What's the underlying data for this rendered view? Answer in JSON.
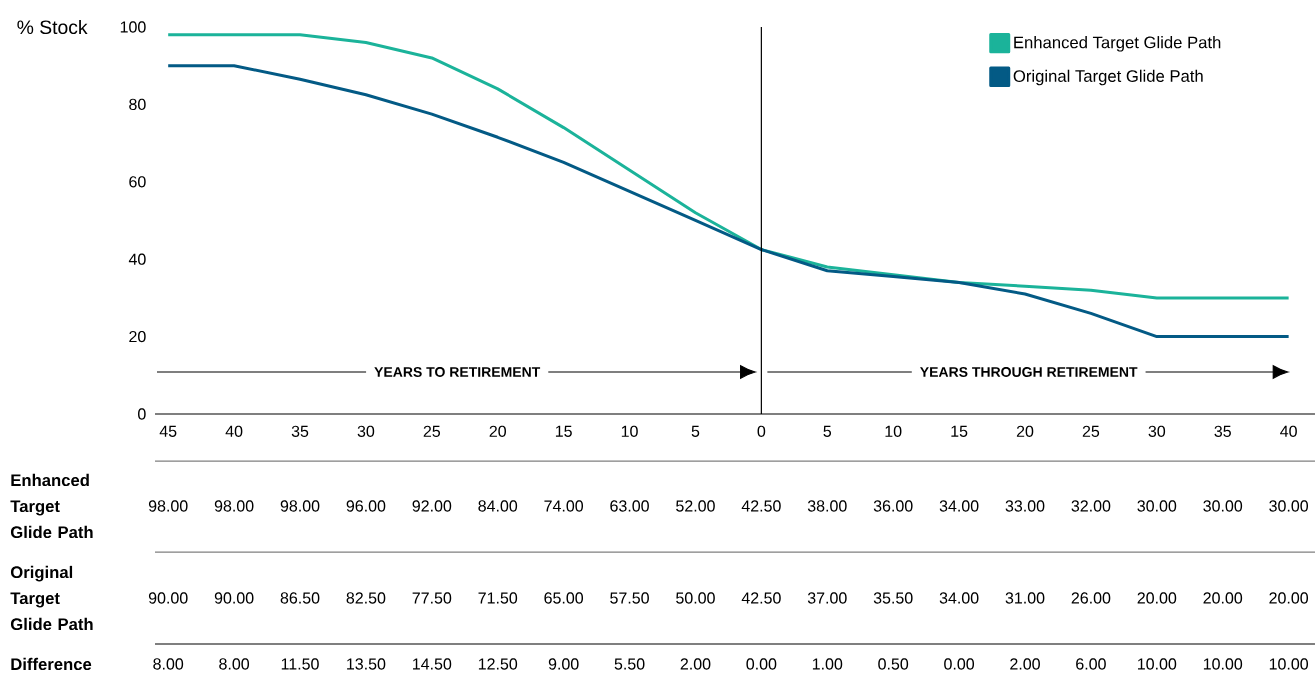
{
  "chart_data": {
    "type": "line",
    "ylabel": "% Stock",
    "x": [
      -45,
      -40,
      -35,
      -30,
      -25,
      -20,
      -15,
      -10,
      -5,
      0,
      5,
      10,
      15,
      20,
      25,
      30,
      35,
      40
    ],
    "xlim": [
      -46,
      42
    ],
    "xticks": [
      {
        "value": -45,
        "label": "45"
      },
      {
        "value": -40,
        "label": "40"
      },
      {
        "value": -35,
        "label": "35"
      },
      {
        "value": -30,
        "label": "30"
      },
      {
        "value": -25,
        "label": "25"
      },
      {
        "value": -20,
        "label": "20"
      },
      {
        "value": -15,
        "label": "15"
      },
      {
        "value": -10,
        "label": "10"
      },
      {
        "value": -5,
        "label": "5"
      },
      0,
      5,
      10,
      15,
      20,
      25,
      30,
      35,
      40
    ],
    "ylim": [
      0,
      100
    ],
    "yticks": [
      0,
      20,
      40,
      60,
      80,
      100
    ],
    "series": [
      {
        "name": "Enhanced Target Glide Path",
        "color": "#1bb39a",
        "values": [
          98,
          98,
          98,
          96,
          92,
          84,
          74,
          63,
          52,
          42.5,
          38,
          36,
          34,
          33,
          32,
          30,
          30,
          30
        ]
      },
      {
        "name": "Original Target Glide Path",
        "color": "#035a85",
        "values": [
          90,
          90,
          86.5,
          82.5,
          77.5,
          71.5,
          65,
          57.5,
          50,
          42.5,
          37,
          35.5,
          34,
          31,
          26,
          20,
          20,
          20
        ]
      }
    ],
    "ref_lines": [
      {
        "axis": "x",
        "value": 0,
        "color": "#000000"
      }
    ],
    "annotations": [
      "YEARS TO RETIREMENT",
      "YEARS THROUGH RETIREMENT",
      "98.00",
      "98.00",
      "98.00",
      "96.00",
      "92.00",
      "84.00",
      "74.00",
      "63.00",
      "52.00",
      "42.50",
      "38.00",
      "36.00",
      "34.00",
      "33.00",
      "32.00",
      "30.00",
      "30.00",
      "30.00",
      "90.00",
      "90.00",
      "86.50",
      "82.50",
      "77.50",
      "71.50",
      "65.00",
      "57.50",
      "50.00",
      "42.50",
      "37.00",
      "35.50",
      "34.00",
      "31.00",
      "26.00",
      "20.00",
      "20.00",
      "20.00",
      "Difference",
      "8.00",
      "8.00",
      "11.50",
      "13.50",
      "14.50",
      "12.50",
      "9.00",
      "5.50",
      "2.00",
      "0.00",
      "1.00",
      "0.50",
      "0.00",
      "2.00",
      "6.00",
      "10.00",
      "10.00",
      "10.00"
    ],
    "legend": "top right"
  }
}
